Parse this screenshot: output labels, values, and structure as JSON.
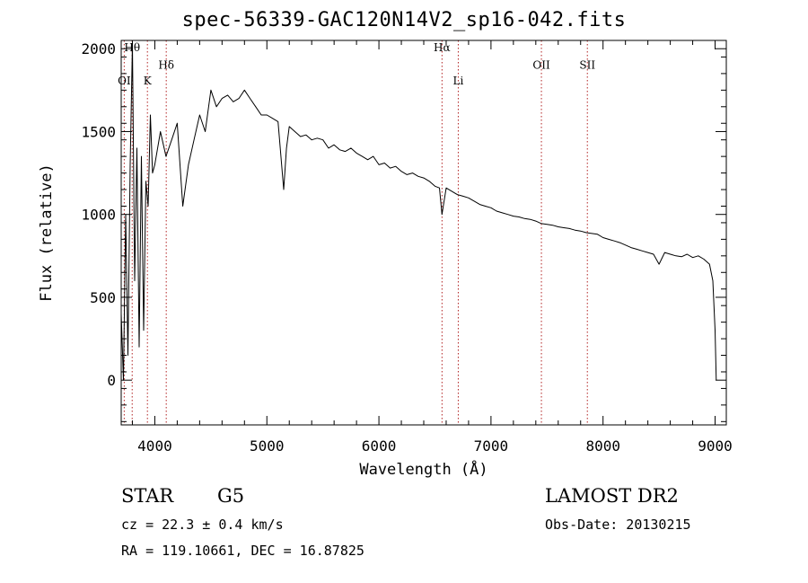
{
  "chart_data": {
    "type": "line",
    "title": "spec-56339-GAC120N14V2_sp16-042.fits",
    "xlabel": "Wavelength (Å)",
    "ylabel": "Flux (relative)",
    "xlim": [
      3700,
      9100
    ],
    "ylim": [
      -270,
      2050
    ],
    "xticks": [
      4000,
      5000,
      6000,
      7000,
      8000,
      9000
    ],
    "yticks": [
      0,
      500,
      1000,
      1500,
      2000
    ],
    "grid": false,
    "lines": [
      {
        "label": "OI",
        "x": 3727,
        "label_y": 1785
      },
      {
        "label": "Hθ",
        "x": 3798,
        "label_y": 1985
      },
      {
        "label": "K",
        "x": 3934,
        "label_y": 1785
      },
      {
        "label": "Hδ",
        "x": 4102,
        "label_y": 1880
      },
      {
        "label": "Hα",
        "x": 6563,
        "label_y": 1985
      },
      {
        "label": "Li",
        "x": 6708,
        "label_y": 1785
      },
      {
        "label": "OII",
        "x": 7450,
        "label_y": 1880
      },
      {
        "label": "SII",
        "x": 7860,
        "label_y": 1880
      }
    ],
    "series": [
      {
        "x": [
          3700,
          3720,
          3740,
          3760,
          3780,
          3800,
          3820,
          3840,
          3860,
          3880,
          3900,
          3920,
          3940,
          3960,
          3980,
          4000,
          4050,
          4100,
          4150,
          4200,
          4250,
          4300,
          4350,
          4400,
          4450,
          4500,
          4550,
          4600,
          4650,
          4700,
          4750,
          4800,
          4850,
          4900,
          4950,
          5000,
          5050,
          5100,
          5150,
          5175,
          5200,
          5250,
          5300,
          5350,
          5400,
          5450,
          5500,
          5550,
          5600,
          5650,
          5700,
          5750,
          5800,
          5850,
          5900,
          5950,
          6000,
          6050,
          6100,
          6150,
          6200,
          6250,
          6300,
          6350,
          6400,
          6450,
          6500,
          6540,
          6563,
          6600,
          6650,
          6700,
          6750,
          6800,
          6850,
          6900,
          6950,
          7000,
          7050,
          7100,
          7150,
          7200,
          7250,
          7300,
          7350,
          7400,
          7450,
          7500,
          7550,
          7600,
          7650,
          7700,
          7750,
          7800,
          7850,
          7900,
          7950,
          8000,
          8050,
          8100,
          8150,
          8200,
          8250,
          8300,
          8350,
          8400,
          8450,
          8500,
          8550,
          8600,
          8650,
          8700,
          8750,
          8800,
          8850,
          8900,
          8950,
          8980,
          9000,
          9010
        ],
        "y": [
          400,
          0,
          1000,
          150,
          1300,
          2030,
          600,
          1400,
          200,
          1350,
          300,
          1200,
          1050,
          1600,
          1250,
          1300,
          1500,
          1350,
          1450,
          1550,
          1050,
          1300,
          1450,
          1600,
          1500,
          1750,
          1650,
          1700,
          1720,
          1680,
          1700,
          1750,
          1700,
          1650,
          1600,
          1600,
          1580,
          1560,
          1150,
          1400,
          1530,
          1500,
          1470,
          1480,
          1450,
          1460,
          1450,
          1400,
          1420,
          1390,
          1380,
          1400,
          1370,
          1350,
          1330,
          1350,
          1300,
          1310,
          1280,
          1290,
          1260,
          1240,
          1250,
          1230,
          1220,
          1200,
          1170,
          1160,
          1000,
          1160,
          1140,
          1120,
          1110,
          1100,
          1080,
          1060,
          1050,
          1040,
          1020,
          1010,
          1000,
          990,
          985,
          975,
          970,
          960,
          945,
          940,
          935,
          925,
          920,
          915,
          905,
          900,
          890,
          885,
          880,
          860,
          850,
          840,
          830,
          815,
          800,
          790,
          780,
          770,
          760,
          700,
          770,
          760,
          750,
          745,
          760,
          740,
          750,
          730,
          700,
          600,
          300,
          0
        ]
      }
    ]
  },
  "info": {
    "object_type": "STAR",
    "subclass": "G5",
    "cz": "cz = 22.3 ± 0.4 km/s",
    "coords": "RA = 119.10661, DEC =  16.87825",
    "survey": "LAMOST DR2",
    "obs_date": "Obs-Date: 20130215"
  }
}
